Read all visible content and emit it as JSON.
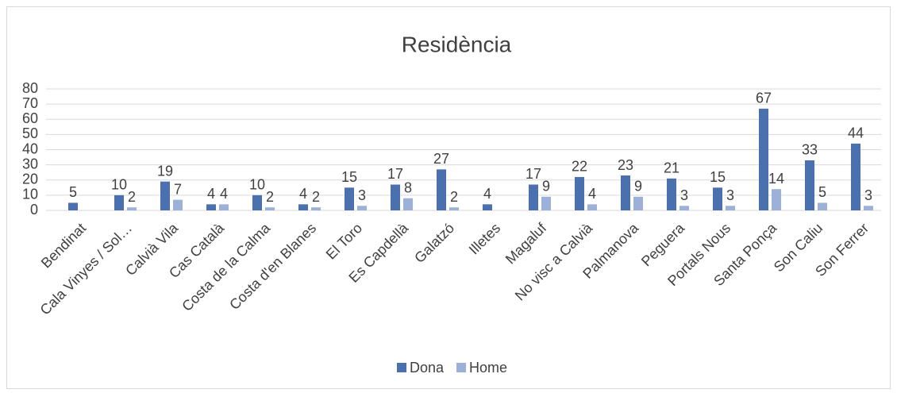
{
  "chart_data": {
    "type": "bar",
    "title": "Residència",
    "categories": [
      "Bendinat",
      "Cala Vinyes / Sol…",
      "Calvià Vila",
      "Cas Català",
      "Costa de la Calma",
      "Costa d'en Blanes",
      "El Toro",
      "Es Capdellà",
      "Galatzó",
      "Illetes",
      "Magaluf",
      "No visc a Calvià",
      "Palmanova",
      "Peguera",
      "Portals Nous",
      "Santa Ponça",
      "Son Caliu",
      "Son Ferrer"
    ],
    "series": [
      {
        "name": "Dona",
        "color": "#4a70ad",
        "values": [
          5,
          10,
          19,
          4,
          10,
          4,
          15,
          17,
          27,
          4,
          17,
          22,
          23,
          21,
          15,
          67,
          33,
          44
        ]
      },
      {
        "name": "Home",
        "color": "#9db0d8",
        "values": [
          null,
          2,
          7,
          4,
          2,
          2,
          3,
          8,
          2,
          null,
          9,
          4,
          9,
          3,
          3,
          14,
          5,
          3
        ]
      }
    ],
    "ylim": [
      0,
      80
    ],
    "yticks": [
      0,
      10,
      20,
      30,
      40,
      50,
      60,
      70,
      80
    ],
    "grid": true,
    "legend": "bottom"
  }
}
